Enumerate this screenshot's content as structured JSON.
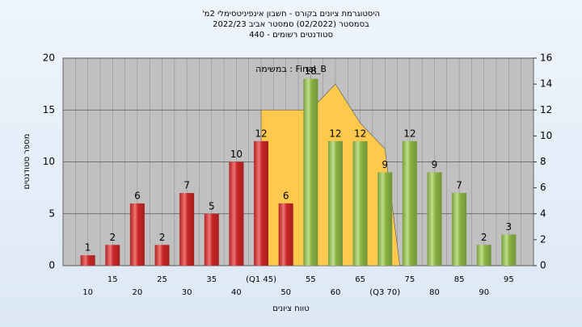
{
  "chart_data": {
    "type": "bar",
    "title_lines": [
      "היסטוגרמת ציונים בקורס - חשבון אינפיניטסימלי 2מ'",
      "בסמסטר (02/2022) סמסטר אביב 2022/23",
      "סטודנטים רשומים - 440"
    ],
    "annotation": "במשימה : Final_B",
    "xlabel": "טווח ציונים",
    "ylabel": "מספר סטודנטים",
    "categories": [
      "10",
      "15",
      "20",
      "25",
      "30",
      "35",
      "40",
      "(Q1 45)",
      "50",
      "55",
      "60",
      "65",
      "(Q3 70)",
      "75",
      "80",
      "85",
      "90",
      "95"
    ],
    "values": [
      1,
      2,
      6,
      2,
      7,
      5,
      10,
      12,
      6,
      18,
      12,
      12,
      9,
      12,
      9,
      7,
      2,
      3
    ],
    "colors": [
      "#e52b2b",
      "#e52b2b",
      "#e52b2b",
      "#e52b2b",
      "#e52b2b",
      "#e52b2b",
      "#e52b2b",
      "#e52b2b",
      "#e52b2b",
      "#9ccc4c",
      "#9ccc4c",
      "#9ccc4c",
      "#9ccc4c",
      "#9ccc4c",
      "#9ccc4c",
      "#9ccc4c",
      "#9ccc4c",
      "#9ccc4c"
    ],
    "ylim": [
      0,
      20
    ],
    "yticks": [
      0,
      5,
      10,
      15,
      20
    ],
    "y2lim": [
      0,
      16
    ],
    "y2ticks": [
      0,
      2,
      4,
      6,
      8,
      10,
      12,
      14,
      16
    ],
    "grid": true,
    "area": {
      "type": "area",
      "axis": "y2",
      "color": "#ffc94d",
      "x": [
        45,
        55,
        60,
        65,
        70,
        73
      ],
      "values": [
        12,
        12,
        14,
        11,
        9,
        0
      ]
    }
  }
}
